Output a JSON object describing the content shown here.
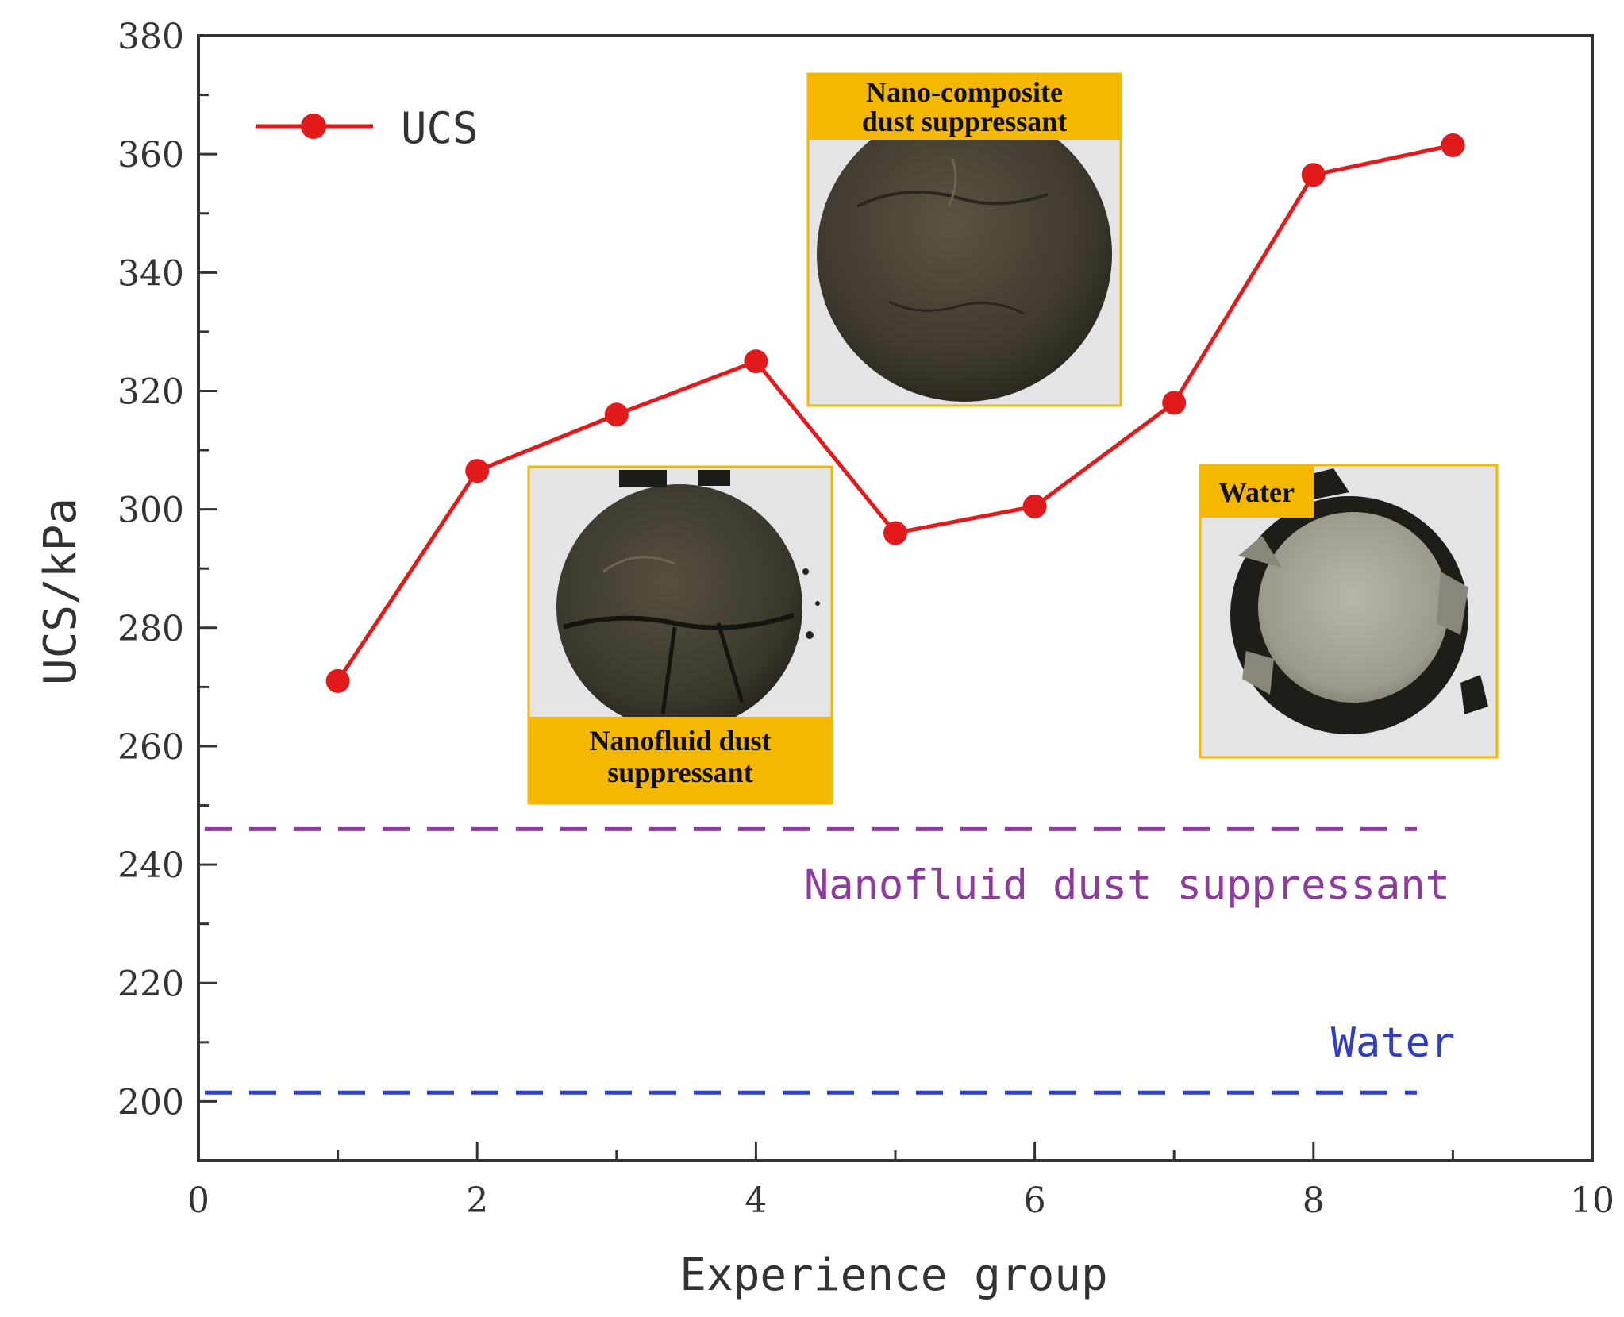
{
  "chart_data": {
    "type": "line",
    "xlabel": "Experience group",
    "ylabel": "UCS/kPa",
    "xlim": [
      0,
      10
    ],
    "ylim": [
      190,
      380
    ],
    "x_ticks": [
      0,
      2,
      4,
      6,
      8,
      10
    ],
    "y_ticks": [
      200,
      220,
      240,
      260,
      280,
      300,
      320,
      340,
      360,
      380
    ],
    "grid": false,
    "legend_position": "top-left",
    "series": [
      {
        "name": "UCS",
        "color": "#e31a1c",
        "marker": "circle",
        "x": [
          1,
          2,
          3,
          4,
          5,
          6,
          7,
          8,
          9
        ],
        "y": [
          271,
          306.5,
          316,
          325,
          296,
          300.5,
          318,
          356.5,
          361.5
        ]
      }
    ],
    "reference_lines": [
      {
        "label": "Nanofluid dust suppressant",
        "y": 246,
        "color": "#8e3a9e",
        "style": "dashed"
      },
      {
        "label": "Water",
        "y": 201.5,
        "color": "#2f3fc0",
        "style": "dashed"
      }
    ],
    "photos": [
      {
        "caption_lines": [
          "Nano-composite",
          "dust suppressant"
        ],
        "caption_position": "top",
        "sample": "intact"
      },
      {
        "caption_lines": [
          "Nanofluid dust",
          "suppressant"
        ],
        "caption_position": "bottom",
        "sample": "cracked"
      },
      {
        "caption_lines": [
          "Water"
        ],
        "caption_position": "top-left",
        "sample": "broken"
      }
    ],
    "colors": {
      "axis": "#333333",
      "caption_bg": "#f5b800",
      "photo_bg": "#e4e4e6"
    }
  }
}
